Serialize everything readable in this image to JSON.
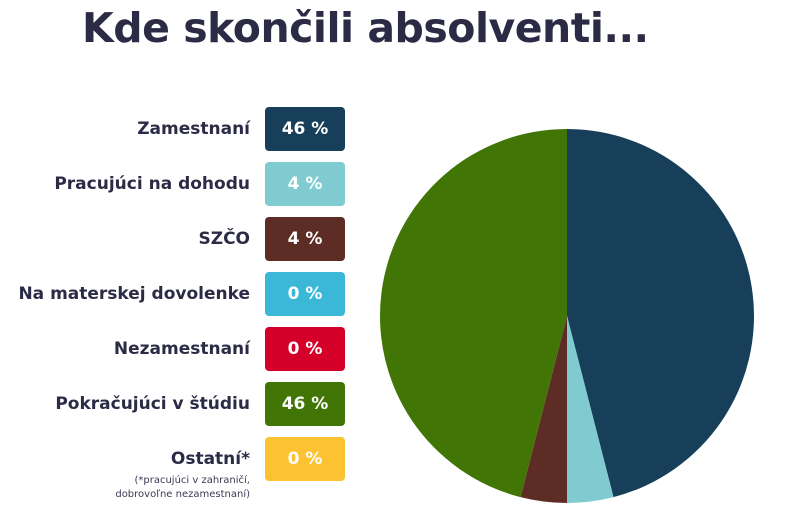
{
  "title": "Kde skončili absolventi...",
  "note": [
    "(*pracujúci v zahraničí,",
    "dobrovoľne nezamestnaní)"
  ],
  "chart_data": {
    "type": "pie",
    "title": "Kde skončili absolventi...",
    "legend_placement": "left",
    "slices": [
      {
        "label": "Zamestnaní",
        "value": 46,
        "display": "46 %",
        "color": "#173f5a"
      },
      {
        "label": "Pracujúci na dohodu",
        "value": 4,
        "display": "4 %",
        "color": "#7fcbcf"
      },
      {
        "label": "SZČO",
        "value": 4,
        "display": "4 %",
        "color": "#5d2d25"
      },
      {
        "label": "Na materskej dovolenke",
        "value": 0,
        "display": "0 %",
        "color": "#3bb7d8"
      },
      {
        "label": "Nezamestnaní",
        "value": 0,
        "display": "0 %",
        "color": "#d4002a"
      },
      {
        "label": "Pokračujúci v štúdiu",
        "value": 46,
        "display": "46 %",
        "color": "#417505"
      },
      {
        "label": "Ostatní*",
        "value": 0,
        "display": "0 %",
        "color": "#fdc232"
      }
    ]
  }
}
